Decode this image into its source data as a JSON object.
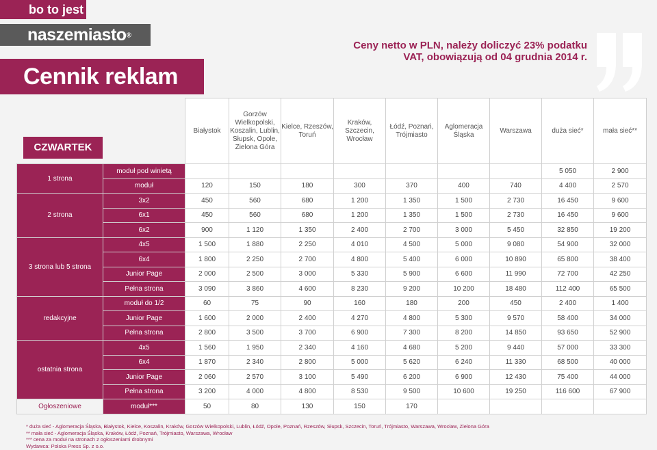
{
  "header": {
    "tagline": "bo to jest",
    "brand": "naszemiasto",
    "brand_mark": "®",
    "title": "Cennik reklam",
    "price_note": "Ceny netto w PLN, należy doliczyć 23% podatku VAT, obowiązują od 04 grudnia 2014 r.",
    "day": "CZWARTEK"
  },
  "columns": [
    "Białystok",
    "Gorzów Wielkopolski, Koszalin, Lublin, Słupsk, Opole, Zielona Góra",
    "Kielce, Rzeszów, Toruń",
    "Kraków, Szczecin, Wrocław",
    "Łódź, Poznań, Trójmiasto",
    "Aglomeracja Śląska",
    "Warszawa",
    "duża sieć*",
    "mała sieć**"
  ],
  "sections": [
    {
      "label": "1 strona",
      "rows": [
        {
          "name": "moduł pod winietą",
          "values": [
            "",
            "",
            "",
            "",
            "",
            "",
            "",
            "5 050",
            "2 900"
          ]
        },
        {
          "name": "moduł",
          "values": [
            "120",
            "150",
            "180",
            "300",
            "370",
            "400",
            "740",
            "4 400",
            "2 570"
          ]
        }
      ]
    },
    {
      "label": "2 strona",
      "rows": [
        {
          "name": "3x2",
          "values": [
            "450",
            "560",
            "680",
            "1 200",
            "1 350",
            "1 500",
            "2 730",
            "16 450",
            "9 600"
          ]
        },
        {
          "name": "6x1",
          "values": [
            "450",
            "560",
            "680",
            "1 200",
            "1 350",
            "1 500",
            "2 730",
            "16 450",
            "9 600"
          ]
        },
        {
          "name": "6x2",
          "values": [
            "900",
            "1 120",
            "1 350",
            "2 400",
            "2 700",
            "3 000",
            "5 450",
            "32 850",
            "19 200"
          ]
        }
      ]
    },
    {
      "label": "3 strona lub 5 strona",
      "rows": [
        {
          "name": "4x5",
          "values": [
            "1 500",
            "1 880",
            "2 250",
            "4 010",
            "4 500",
            "5 000",
            "9 080",
            "54 900",
            "32 000"
          ]
        },
        {
          "name": "6x4",
          "values": [
            "1 800",
            "2 250",
            "2 700",
            "4 800",
            "5 400",
            "6 000",
            "10 890",
            "65 800",
            "38 400"
          ]
        },
        {
          "name": "Junior Page",
          "values": [
            "2 000",
            "2 500",
            "3 000",
            "5 330",
            "5 900",
            "6 600",
            "11 990",
            "72 700",
            "42 250"
          ]
        },
        {
          "name": "Pełna strona",
          "values": [
            "3 090",
            "3 860",
            "4 600",
            "8 230",
            "9 200",
            "10 200",
            "18 480",
            "112 400",
            "65 500"
          ]
        }
      ]
    },
    {
      "label": "redakcyjne",
      "rows": [
        {
          "name": "moduł do 1/2",
          "values": [
            "60",
            "75",
            "90",
            "160",
            "180",
            "200",
            "450",
            "2 400",
            "1 400"
          ]
        },
        {
          "name": "Junior Page",
          "values": [
            "1 600",
            "2 000",
            "2 400",
            "4 270",
            "4 800",
            "5 300",
            "9 570",
            "58 400",
            "34 000"
          ]
        },
        {
          "name": "Pełna strona",
          "values": [
            "2 800",
            "3 500",
            "3 700",
            "6 900",
            "7 300",
            "8 200",
            "14 850",
            "93 650",
            "52 900"
          ]
        }
      ]
    },
    {
      "label": "ostatnia strona",
      "rows": [
        {
          "name": "4x5",
          "values": [
            "1 560",
            "1 950",
            "2 340",
            "4 160",
            "4 680",
            "5 200",
            "9 440",
            "57 000",
            "33 300"
          ]
        },
        {
          "name": "6x4",
          "values": [
            "1 870",
            "2 340",
            "2 800",
            "5 000",
            "5 620",
            "6 240",
            "11 330",
            "68 500",
            "40 000"
          ]
        },
        {
          "name": "Junior Page",
          "values": [
            "2 060",
            "2 570",
            "3 100",
            "5 490",
            "6 200",
            "6 900",
            "12 430",
            "75 400",
            "44 000"
          ]
        },
        {
          "name": "Pełna strona",
          "values": [
            "3 200",
            "4 000",
            "4 800",
            "8 530",
            "9 500",
            "10 600",
            "19 250",
            "116 600",
            "67 900"
          ]
        }
      ]
    }
  ],
  "ogloszeniowe": {
    "label": "Ogłoszeniowe",
    "name": "moduł***",
    "values": [
      "50",
      "80",
      "130",
      "150",
      "170"
    ]
  },
  "footnotes": [
    "* duża sieć - Aglomeracja Śląska, Białystok, Kielce, Koszalin, Kraków, Gorzów Wielkopolski, Lublin, Łódź, Opole, Poznań, Rzeszów, Słupsk, Szczecin, Toruń, Trójmiasto, Warszawa, Wrocław, Zielona Góra",
    "** mała sieć - Aglomeracja Śląska, Kraków, Łódź, Poznań, Trójmiasto, Warszawa, Wrocław",
    "*** cena za moduł na stronach z ogłoszeniami drobnymi",
    "Wydawca: Polska Press Sp. z o.o."
  ],
  "colors": {
    "accent": "#9b2355",
    "brand_bar": "#5a5a5a",
    "page_bg": "#f3f3f3"
  }
}
